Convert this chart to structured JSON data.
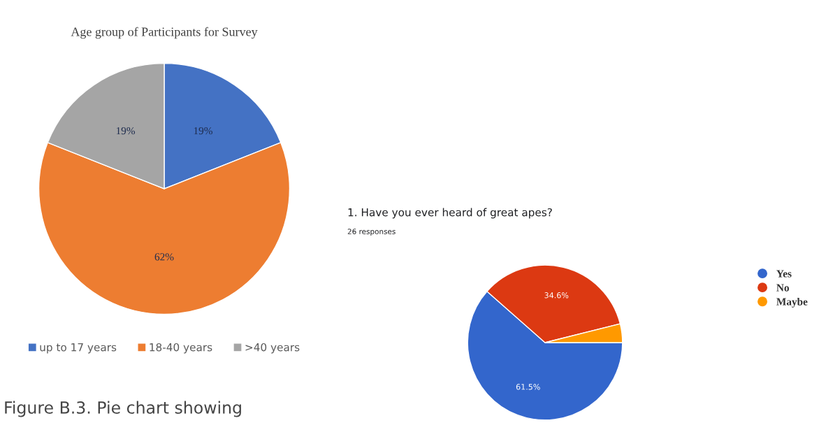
{
  "chart_data": [
    {
      "type": "pie",
      "title": "Age group of Participants for Survey",
      "categories": [
        "up to 17 years",
        "18-40 years",
        ">40 years"
      ],
      "values": [
        19,
        62,
        19
      ],
      "colors": [
        "#4472c4",
        "#ed7d31",
        "#a5a5a5"
      ],
      "value_labels": [
        "19%",
        "62%",
        "19%"
      ],
      "legend": "bottom",
      "annotations": [
        "Figure B.3. Pie chart showing"
      ]
    },
    {
      "type": "pie",
      "title": "1. Have you ever heard of great apes?",
      "subtitle": "26 responses",
      "categories": [
        "Yes",
        "No",
        "Maybe"
      ],
      "values": [
        61.5,
        34.6,
        3.9
      ],
      "colors": [
        "#3366cc",
        "#dc3912",
        "#ff9900"
      ],
      "value_labels": [
        "61.5%",
        "34.6%",
        null
      ],
      "legend": "right"
    }
  ]
}
